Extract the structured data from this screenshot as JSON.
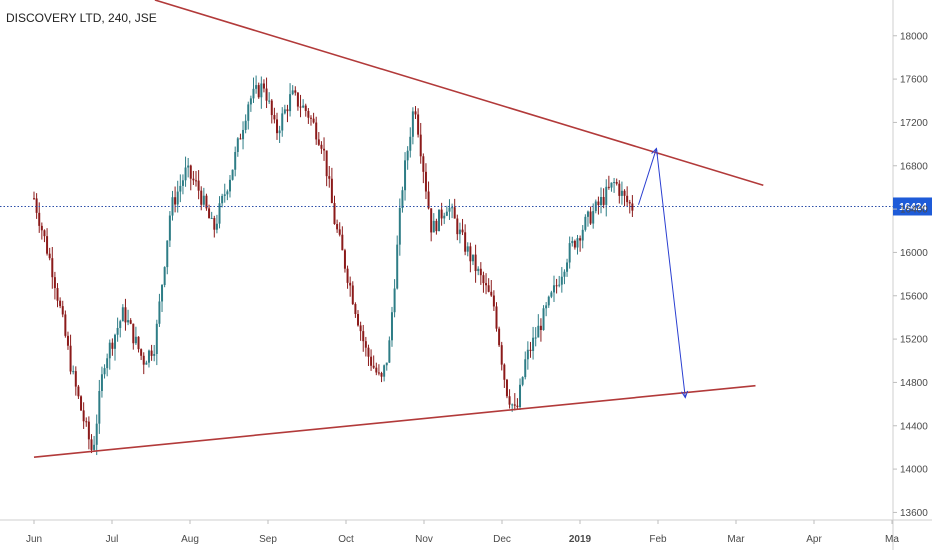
{
  "chart_data": {
    "type": "candlestick",
    "title": "DISCOVERY LTD, 240, JSE",
    "y_axis": {
      "ticks": [
        13600,
        14000,
        14400,
        14800,
        15200,
        15600,
        16000,
        16400,
        16800,
        17200,
        17600,
        18000
      ],
      "ylim": [
        13530,
        18330
      ]
    },
    "x_axis": {
      "ticks": [
        {
          "label": "Jun",
          "bold": false
        },
        {
          "label": "Jul",
          "bold": false
        },
        {
          "label": "Aug",
          "bold": false
        },
        {
          "label": "Sep",
          "bold": false
        },
        {
          "label": "Oct",
          "bold": false
        },
        {
          "label": "Nov",
          "bold": false
        },
        {
          "label": "Dec",
          "bold": false
        },
        {
          "label": "2019",
          "bold": true
        },
        {
          "label": "Feb",
          "bold": false
        },
        {
          "label": "Mar",
          "bold": false
        },
        {
          "label": "Apr",
          "bold": false
        },
        {
          "label": "Ma",
          "bold": false
        }
      ]
    },
    "current_price": {
      "value": 16424,
      "label": "16424",
      "color": "#1e5bd8"
    },
    "colors": {
      "up": "#2e7d86",
      "down": "#8b1a1a",
      "trendline": "#b23a3a",
      "projection": "#2b3fd1",
      "price_line": "#2b4ea8"
    },
    "price_path": [
      {
        "m": 0.0,
        "v": 16500
      },
      {
        "m": 0.25,
        "v": 15800
      },
      {
        "m": 0.5,
        "v": 14850
      },
      {
        "m": 0.62,
        "v": 14500
      },
      {
        "m": 0.75,
        "v": 14150
      },
      {
        "m": 0.9,
        "v": 15000
      },
      {
        "m": 1.15,
        "v": 15450
      },
      {
        "m": 1.4,
        "v": 15000
      },
      {
        "m": 1.55,
        "v": 15150
      },
      {
        "m": 1.75,
        "v": 16400
      },
      {
        "m": 1.95,
        "v": 16750
      },
      {
        "m": 2.1,
        "v": 16600
      },
      {
        "m": 2.3,
        "v": 16200
      },
      {
        "m": 2.55,
        "v": 16800
      },
      {
        "m": 2.75,
        "v": 17400
      },
      {
        "m": 2.95,
        "v": 17550
      },
      {
        "m": 3.1,
        "v": 17100
      },
      {
        "m": 3.3,
        "v": 17450
      },
      {
        "m": 3.5,
        "v": 17300
      },
      {
        "m": 3.7,
        "v": 17000
      },
      {
        "m": 3.85,
        "v": 16300
      },
      {
        "m": 4.05,
        "v": 15700
      },
      {
        "m": 4.25,
        "v": 15100
      },
      {
        "m": 4.45,
        "v": 14800
      },
      {
        "m": 4.55,
        "v": 15100
      },
      {
        "m": 4.72,
        "v": 16600
      },
      {
        "m": 4.88,
        "v": 17400
      },
      {
        "m": 4.97,
        "v": 16900
      },
      {
        "m": 5.1,
        "v": 16200
      },
      {
        "m": 5.3,
        "v": 16450
      },
      {
        "m": 5.5,
        "v": 16100
      },
      {
        "m": 5.7,
        "v": 15800
      },
      {
        "m": 5.9,
        "v": 15500
      },
      {
        "m": 6.05,
        "v": 14750
      },
      {
        "m": 6.18,
        "v": 14500
      },
      {
        "m": 6.3,
        "v": 15000
      },
      {
        "m": 6.5,
        "v": 15350
      },
      {
        "m": 6.7,
        "v": 15700
      },
      {
        "m": 6.85,
        "v": 16000
      },
      {
        "m": 7.05,
        "v": 16250
      },
      {
        "m": 7.25,
        "v": 16450
      },
      {
        "m": 7.45,
        "v": 16650
      },
      {
        "m": 7.58,
        "v": 16480
      },
      {
        "m": 7.7,
        "v": 16400
      }
    ],
    "annotations": [
      {
        "type": "trendline",
        "name": "resistance",
        "from": {
          "m": 1.55,
          "v": 18330
        },
        "to": {
          "m": 9.35,
          "v": 16620
        }
      },
      {
        "type": "trendline",
        "name": "support",
        "from": {
          "m": 0.0,
          "v": 14110
        },
        "to": {
          "m": 9.25,
          "v": 14770
        }
      },
      {
        "type": "projection",
        "points": [
          {
            "m": 7.75,
            "v": 16440
          },
          {
            "m": 7.98,
            "v": 16960
          },
          {
            "m": 8.35,
            "v": 14660
          }
        ]
      }
    ]
  }
}
